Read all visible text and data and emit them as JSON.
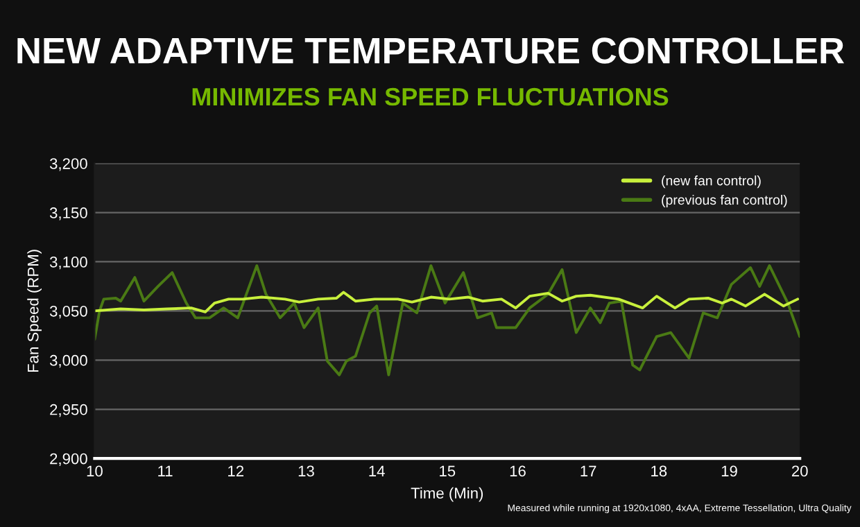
{
  "chart_data": {
    "type": "line",
    "title": "NEW ADAPTIVE TEMPERATURE CONTROLLER",
    "subtitle": "MINIMIZES FAN SPEED FLUCTUATIONS",
    "xlabel": "Time (Min)",
    "ylabel": "Fan Speed (RPM)",
    "series": [
      {
        "name": "(new fan control)",
        "color": "#c8f03c",
        "x": [
          10,
          10.37,
          10.7,
          11.03,
          11.37,
          11.57,
          11.7,
          11.9,
          12.1,
          12.37,
          12.7,
          12.9,
          13.17,
          13.43,
          13.53,
          13.7,
          13.97,
          14.3,
          14.5,
          14.77,
          15.03,
          15.3,
          15.5,
          15.77,
          15.97,
          16.17,
          16.43,
          16.63,
          16.83,
          17.03,
          17.43,
          17.77,
          17.97,
          18.23,
          18.43,
          18.7,
          18.9,
          19.03,
          19.23,
          19.5,
          19.77,
          19.97
        ],
        "values": [
          3050,
          3052,
          3051,
          3052,
          3053,
          3049,
          3058,
          3062,
          3062,
          3064,
          3062,
          3059,
          3062,
          3063,
          3069,
          3060,
          3062,
          3062,
          3059,
          3064,
          3062,
          3064,
          3060,
          3062,
          3053,
          3065,
          3068,
          3060,
          3065,
          3066,
          3062,
          3053,
          3065,
          3053,
          3062,
          3063,
          3058,
          3062,
          3055,
          3067,
          3055,
          3062
        ]
      },
      {
        "name": "(previous fan control)",
        "color": "#4a7a14",
        "x": [
          10,
          10.07,
          10.13,
          10.3,
          10.37,
          10.57,
          10.7,
          10.9,
          11.1,
          11.3,
          11.43,
          11.63,
          11.83,
          12.03,
          12.3,
          12.43,
          12.63,
          12.83,
          12.97,
          13.17,
          13.3,
          13.47,
          13.57,
          13.7,
          13.9,
          14.0,
          14.17,
          14.37,
          14.57,
          14.77,
          14.97,
          15.23,
          15.43,
          15.63,
          15.7,
          15.97,
          16.17,
          16.43,
          16.63,
          16.83,
          17.03,
          17.17,
          17.3,
          17.47,
          17.63,
          17.73,
          17.97,
          18.17,
          18.43,
          18.63,
          18.83,
          19.03,
          19.3,
          19.43,
          19.57,
          19.83,
          20.0
        ],
        "values": [
          3021,
          3050,
          3062,
          3063,
          3060,
          3084,
          3060,
          3075,
          3089,
          3058,
          3043,
          3043,
          3053,
          3043,
          3096,
          3067,
          3043,
          3058,
          3033,
          3053,
          2999,
          2985,
          2999,
          3004,
          3048,
          3055,
          2985,
          3058,
          3048,
          3096,
          3058,
          3089,
          3043,
          3048,
          3033,
          3033,
          3053,
          3067,
          3092,
          3028,
          3053,
          3038,
          3058,
          3060,
          2995,
          2990,
          3024,
          3028,
          3002,
          3048,
          3043,
          3077,
          3094,
          3075,
          3096,
          3058,
          3024
        ]
      }
    ],
    "xlim": [
      10,
      20
    ],
    "xticks": [
      10,
      11,
      12,
      13,
      14,
      15,
      16,
      17,
      18,
      19,
      20
    ],
    "ylim": [
      2900,
      3200
    ],
    "yticks": [
      {
        "value": 2900,
        "label": "2,900"
      },
      {
        "value": 2950,
        "label": "2,950"
      },
      {
        "value": 3000,
        "label": "3,000"
      },
      {
        "value": 3050,
        "label": "3,050"
      },
      {
        "value": 3100,
        "label": "3,100"
      },
      {
        "value": 3150,
        "label": "3,150"
      },
      {
        "value": 3200,
        "label": "3,200"
      }
    ],
    "grid": "y",
    "legend": "top right",
    "marker": "none",
    "line_style": "solid",
    "annotations": [
      "Measured while running at 1920x1080, 4xAA, Extreme Tessellation, Ultra Quality"
    ]
  }
}
